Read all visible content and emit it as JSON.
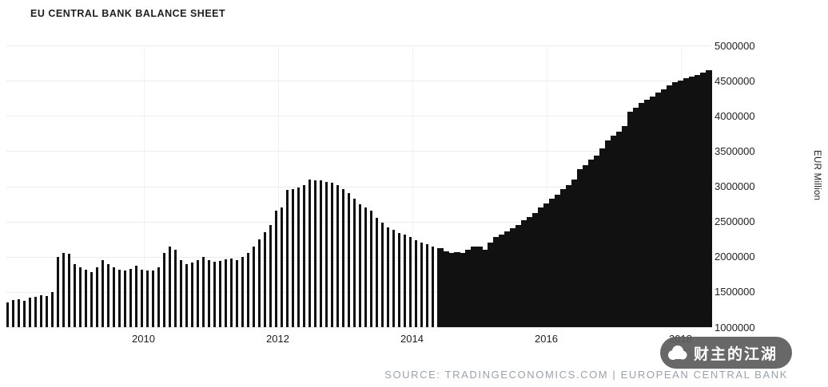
{
  "title": "EU CENTRAL BANK BALANCE SHEET",
  "source": "SOURCE: TRADINGECONOMICS.COM | EUROPEAN CENTRAL BANK",
  "watermark": "财主的江湖",
  "y_axis_unit": "EUR Million",
  "colors": {
    "bar": "#111111",
    "grid": "#ececec",
    "axis_text": "#1f1f1f",
    "source_text": "#9aa2aa",
    "watermark_bg": "#5c5c5c",
    "background": "#ffffff"
  },
  "chart_data": {
    "type": "bar",
    "title": "EU CENTRAL BANK BALANCE SHEET",
    "xlabel": "",
    "ylabel": "EUR Million",
    "ylim": [
      1000000,
      5000000
    ],
    "y_ticks": [
      5000000,
      4500000,
      4000000,
      3500000,
      3000000,
      2500000,
      2000000,
      1500000,
      1000000
    ],
    "x_ticks": [
      2010,
      2012,
      2014,
      2016,
      2018
    ],
    "x_start_year": 2008,
    "frequency": "monthly",
    "legend": "none",
    "grid": "horizontal",
    "solid_from_index": 77,
    "values": [
      1350000,
      1380000,
      1400000,
      1370000,
      1420000,
      1430000,
      1450000,
      1440000,
      1500000,
      2000000,
      2050000,
      2040000,
      1900000,
      1850000,
      1820000,
      1780000,
      1850000,
      1950000,
      1900000,
      1850000,
      1820000,
      1800000,
      1830000,
      1870000,
      1820000,
      1800000,
      1810000,
      1850000,
      2050000,
      2150000,
      2100000,
      1950000,
      1900000,
      1920000,
      1950000,
      2000000,
      1950000,
      1930000,
      1940000,
      1960000,
      1970000,
      1950000,
      2000000,
      2050000,
      2150000,
      2250000,
      2350000,
      2450000,
      2650000,
      2700000,
      2950000,
      2960000,
      2980000,
      3020000,
      3100000,
      3090000,
      3080000,
      3060000,
      3050000,
      3020000,
      2960000,
      2900000,
      2820000,
      2750000,
      2700000,
      2650000,
      2550000,
      2480000,
      2420000,
      2380000,
      2340000,
      2320000,
      2280000,
      2240000,
      2200000,
      2180000,
      2150000,
      2120000,
      2080000,
      2050000,
      2060000,
      2050000,
      2100000,
      2150000,
      2150000,
      2100000,
      2200000,
      2280000,
      2320000,
      2360000,
      2400000,
      2450000,
      2520000,
      2560000,
      2620000,
      2700000,
      2760000,
      2820000,
      2880000,
      2960000,
      3020000,
      3100000,
      3240000,
      3300000,
      3380000,
      3440000,
      3540000,
      3650000,
      3720000,
      3780000,
      3860000,
      4060000,
      4120000,
      4180000,
      4230000,
      4280000,
      4330000,
      4380000,
      4430000,
      4480000,
      4500000,
      4540000,
      4560000,
      4580000,
      4620000,
      4650000
    ]
  }
}
